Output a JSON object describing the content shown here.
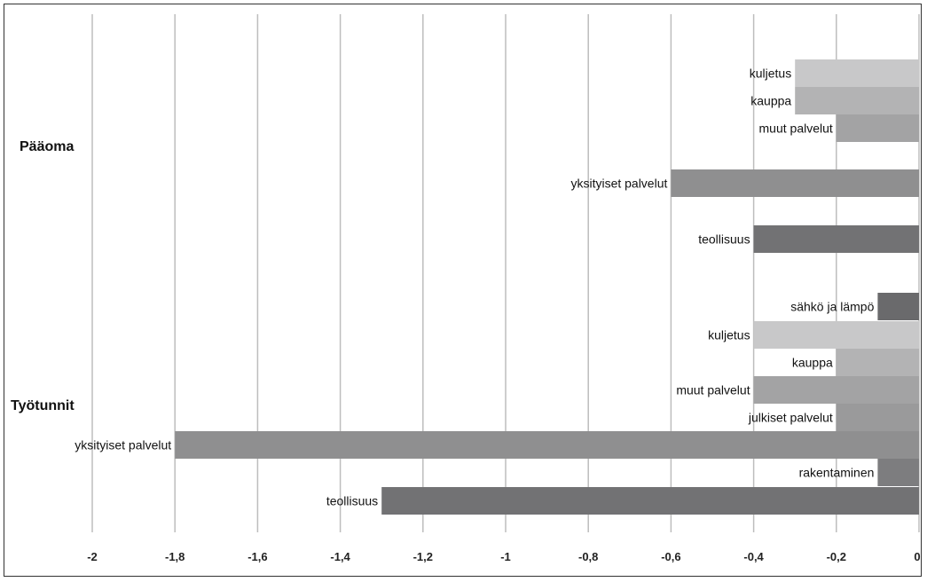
{
  "chart_data": {
    "type": "bar",
    "orientation": "horizontal",
    "xlim": [
      -2,
      0
    ],
    "x_ticks": [
      "-2",
      "-1,8",
      "-1,6",
      "-1,4",
      "-1,2",
      "-1",
      "-0,8",
      "-0,6",
      "-0,4",
      "-0,2",
      "0"
    ],
    "grid": true,
    "groups": [
      {
        "name": "Pääoma",
        "bars": [
          {
            "label": "kuljetus",
            "value": -0.3,
            "color": "#c8c8c9"
          },
          {
            "label": "kauppa",
            "value": -0.3,
            "color": "#b3b3b4"
          },
          {
            "label": "muut palvelut",
            "value": -0.2,
            "color": "#a3a3a4"
          },
          {
            "label": "yksityiset palvelut",
            "value": -0.6,
            "color": "#8f8f90"
          },
          {
            "label": "teollisuus",
            "value": -0.4,
            "color": "#727274"
          }
        ]
      },
      {
        "name": "Työtunnit",
        "bars": [
          {
            "label": "sähkö ja lämpö",
            "value": -0.1,
            "color": "#6a6a6c"
          },
          {
            "label": "kuljetus",
            "value": -0.4,
            "color": "#c8c8c9"
          },
          {
            "label": "kauppa",
            "value": -0.2,
            "color": "#b3b3b4"
          },
          {
            "label": "muut palvelut",
            "value": -0.4,
            "color": "#a3a3a4"
          },
          {
            "label": "julkiset palvelut",
            "value": -0.2,
            "color": "#9a9a9b"
          },
          {
            "label": "yksityiset palvelut",
            "value": -1.8,
            "color": "#8f8f90"
          },
          {
            "label": "rakentaminen",
            "value": -0.1,
            "color": "#7d7d7f"
          },
          {
            "label": "teollisuus",
            "value": -1.3,
            "color": "#727274"
          }
        ]
      }
    ]
  }
}
